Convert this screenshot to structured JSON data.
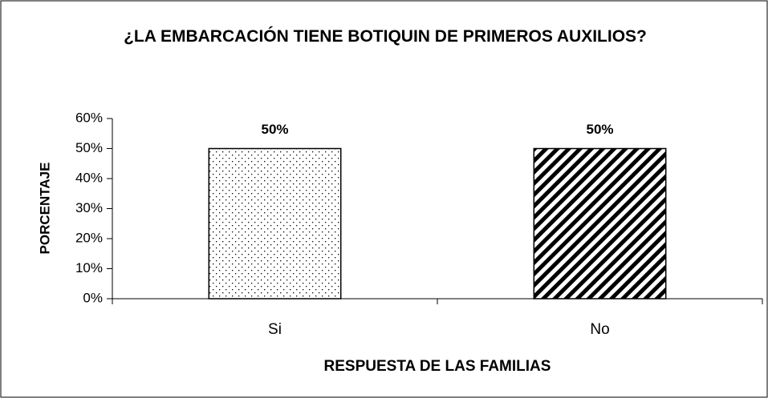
{
  "chart_data": {
    "type": "bar",
    "title": "¿LA EMBARCACIÓN TIENE BOTIQUIN DE PRIMEROS AUXILIOS?",
    "x_label": "RESPUESTA DE LAS FAMILIAS",
    "y_label": "PORCENTAJE",
    "categories": [
      "Si",
      "No"
    ],
    "values": [
      50,
      50
    ],
    "value_labels": [
      "50%",
      "50%"
    ],
    "ylim": [
      0,
      60
    ],
    "yticks": [
      {
        "value": 0,
        "label": "0%"
      },
      {
        "value": 10,
        "label": "10%"
      },
      {
        "value": 20,
        "label": "20%"
      },
      {
        "value": 30,
        "label": "30%"
      },
      {
        "value": 40,
        "label": "40%"
      },
      {
        "value": 50,
        "label": "50%"
      },
      {
        "value": 60,
        "label": "60%"
      }
    ],
    "grid": false
  }
}
